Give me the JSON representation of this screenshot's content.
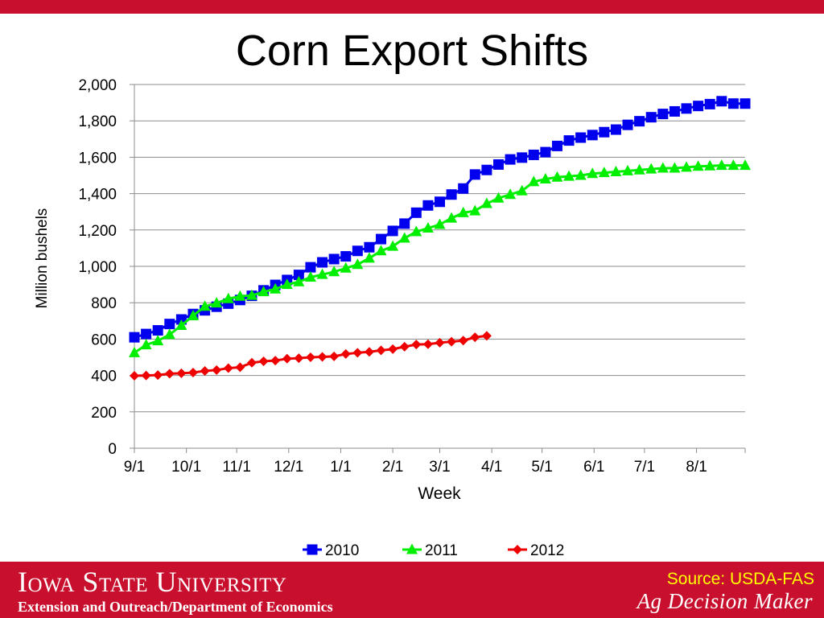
{
  "slide": {
    "title": "Corn Export Shifts",
    "footer_institution": "Iowa State University",
    "footer_department": "Extension and Outreach/Department of Economics",
    "footer_source": "Source: USDA-FAS",
    "footer_brand": "Ag Decision Maker",
    "colors": {
      "brand_red": "#c8102e",
      "source_yellow": "#ffff00"
    }
  },
  "chart_data": {
    "type": "line",
    "title": "",
    "xlabel": "Week",
    "ylabel": "Million bushels",
    "ylim": [
      0,
      2000
    ],
    "yticks": [
      0,
      200,
      400,
      600,
      800,
      1000,
      1200,
      1400,
      1600,
      1800,
      2000
    ],
    "ytick_labels": [
      "0",
      "200",
      "400",
      "600",
      "800",
      "1,000",
      "1,200",
      "1,400",
      "1,600",
      "1,800",
      "2,000"
    ],
    "xtick_labels": [
      "9/1",
      "10/1",
      "11/1",
      "12/1",
      "1/1",
      "2/1",
      "3/1",
      "4/1",
      "5/1",
      "6/1",
      "7/1",
      "8/1"
    ],
    "xtick_weeks": [
      0,
      4.43,
      8.71,
      13.14,
      17.57,
      22.0,
      26.0,
      30.43,
      34.71,
      39.14,
      43.43,
      47.86
    ],
    "weeks_total": 52,
    "grid": "horizontal",
    "legend_position": "bottom",
    "series": [
      {
        "name": "2010",
        "color": "#0000ee",
        "marker": "square",
        "values": [
          610,
          628,
          648,
          683,
          708,
          738,
          758,
          778,
          795,
          815,
          838,
          868,
          898,
          925,
          953,
          995,
          1022,
          1040,
          1055,
          1085,
          1105,
          1150,
          1195,
          1235,
          1295,
          1335,
          1355,
          1395,
          1428,
          1505,
          1530,
          1560,
          1588,
          1598,
          1613,
          1628,
          1662,
          1692,
          1708,
          1722,
          1738,
          1752,
          1778,
          1798,
          1820,
          1838,
          1852,
          1868,
          1882,
          1892,
          1908,
          1895,
          1895
        ]
      },
      {
        "name": "2011",
        "color": "#00ee00",
        "marker": "triangle",
        "values": [
          525,
          568,
          590,
          625,
          675,
          728,
          780,
          798,
          822,
          835,
          840,
          860,
          875,
          900,
          915,
          940,
          955,
          970,
          990,
          1010,
          1045,
          1085,
          1110,
          1155,
          1190,
          1210,
          1230,
          1265,
          1295,
          1305,
          1345,
          1375,
          1395,
          1415,
          1465,
          1480,
          1490,
          1495,
          1500,
          1510,
          1515,
          1520,
          1525,
          1530,
          1535,
          1540,
          1540,
          1545,
          1550,
          1552,
          1555,
          1555,
          1555
        ]
      },
      {
        "name": "2012",
        "color": "#ee0000",
        "marker": "diamond",
        "values": [
          398,
          400,
          402,
          410,
          412,
          416,
          425,
          430,
          440,
          445,
          470,
          478,
          482,
          492,
          495,
          500,
          502,
          505,
          518,
          525,
          530,
          538,
          545,
          558,
          570,
          572,
          580,
          586,
          592,
          610,
          618
        ]
      }
    ]
  }
}
